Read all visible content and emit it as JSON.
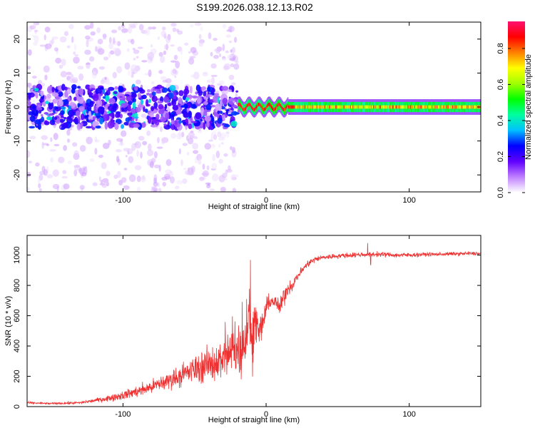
{
  "title": "S199.2026.038.12.13.R02",
  "chart_data": [
    {
      "type": "heatmap",
      "name": "spectrogram",
      "xlabel": "Height of straight line (km)",
      "ylabel": "Frequency (Hz)",
      "xlim": [
        -167,
        150
      ],
      "ylim": [
        -25,
        25
      ],
      "xticks": [
        -100,
        0,
        100
      ],
      "xtick_labels": [
        "-100",
        "0",
        "100"
      ],
      "yticks": [
        -20,
        -10,
        0,
        10,
        20
      ],
      "ytick_labels": [
        "-20",
        "-10",
        "0",
        "10",
        "20"
      ],
      "colorbar": {
        "label": "Normalized spectral amplitude",
        "range": [
          0,
          0.95
        ],
        "ticks": [
          0.0,
          0.2,
          0.4,
          0.6,
          0.8
        ],
        "tick_labels": [
          "0.0",
          "0.2",
          "0.4",
          "0.6",
          "0.8"
        ],
        "colormap": [
          "#ffffff",
          "#c080ff",
          "#6000ff",
          "#0000ff",
          "#00c0ff",
          "#00ffa0",
          "#00ff00",
          "#a0ff00",
          "#ffff00",
          "#ff8000",
          "#ff0000",
          "#ff1070"
        ]
      },
      "features": [
        {
          "description": "scattered noise",
          "x_range": [
            -167,
            -20
          ],
          "f_range": [
            -25,
            25
          ],
          "amplitude": 0.05
        },
        {
          "description": "broad noisy band",
          "x_range": [
            -167,
            -20
          ],
          "f_range": [
            -6,
            6
          ],
          "amplitude": 0.2
        },
        {
          "description": "narrow carrier line",
          "x_range": [
            -20,
            150
          ],
          "f_center": 0,
          "f_halfwidth": 1.5,
          "amplitude": 0.9
        }
      ]
    },
    {
      "type": "line",
      "name": "snr",
      "xlabel": "Height of straight line (km)",
      "ylabel": "SNR (10 * v/v)",
      "xlim": [
        -167,
        150
      ],
      "ylim": [
        0,
        1130
      ],
      "xticks": [
        -100,
        0,
        100
      ],
      "xtick_labels": [
        "-100",
        "0",
        "100"
      ],
      "yticks": [
        0,
        200,
        400,
        600,
        800,
        1000
      ],
      "ytick_labels": [
        "0",
        "200",
        "400",
        "600",
        "800",
        "1000"
      ],
      "color": "#ee3030",
      "series": [
        {
          "name": "SNR",
          "x": [
            -167,
            -150,
            -130,
            -120,
            -110,
            -100,
            -90,
            -80,
            -70,
            -60,
            -50,
            -40,
            -30,
            -25,
            -20,
            -15,
            -12,
            -10,
            -8,
            -5,
            -2,
            0,
            3,
            6,
            10,
            12,
            15,
            18,
            20,
            25,
            30,
            35,
            40,
            50,
            60,
            70,
            80,
            90,
            100,
            110,
            120,
            130,
            140,
            150
          ],
          "y": [
            25,
            20,
            25,
            40,
            55,
            75,
            100,
            130,
            165,
            205,
            245,
            280,
            310,
            340,
            380,
            420,
            650,
            380,
            600,
            480,
            560,
            650,
            700,
            690,
            650,
            720,
            780,
            800,
            830,
            900,
            950,
            975,
            985,
            995,
            1000,
            1005,
            1005,
            1000,
            1000,
            1005,
            1005,
            1008,
            1010,
            1010
          ],
          "noise": [
            8,
            8,
            10,
            15,
            25,
            35,
            45,
            55,
            70,
            85,
            110,
            140,
            170,
            200,
            230,
            260,
            300,
            250,
            200,
            120,
            120,
            80,
            60,
            50,
            70,
            90,
            60,
            50,
            40,
            30,
            30,
            25,
            20,
            20,
            20,
            20,
            20,
            18,
            18,
            15,
            15,
            15,
            15,
            15
          ]
        }
      ]
    }
  ]
}
